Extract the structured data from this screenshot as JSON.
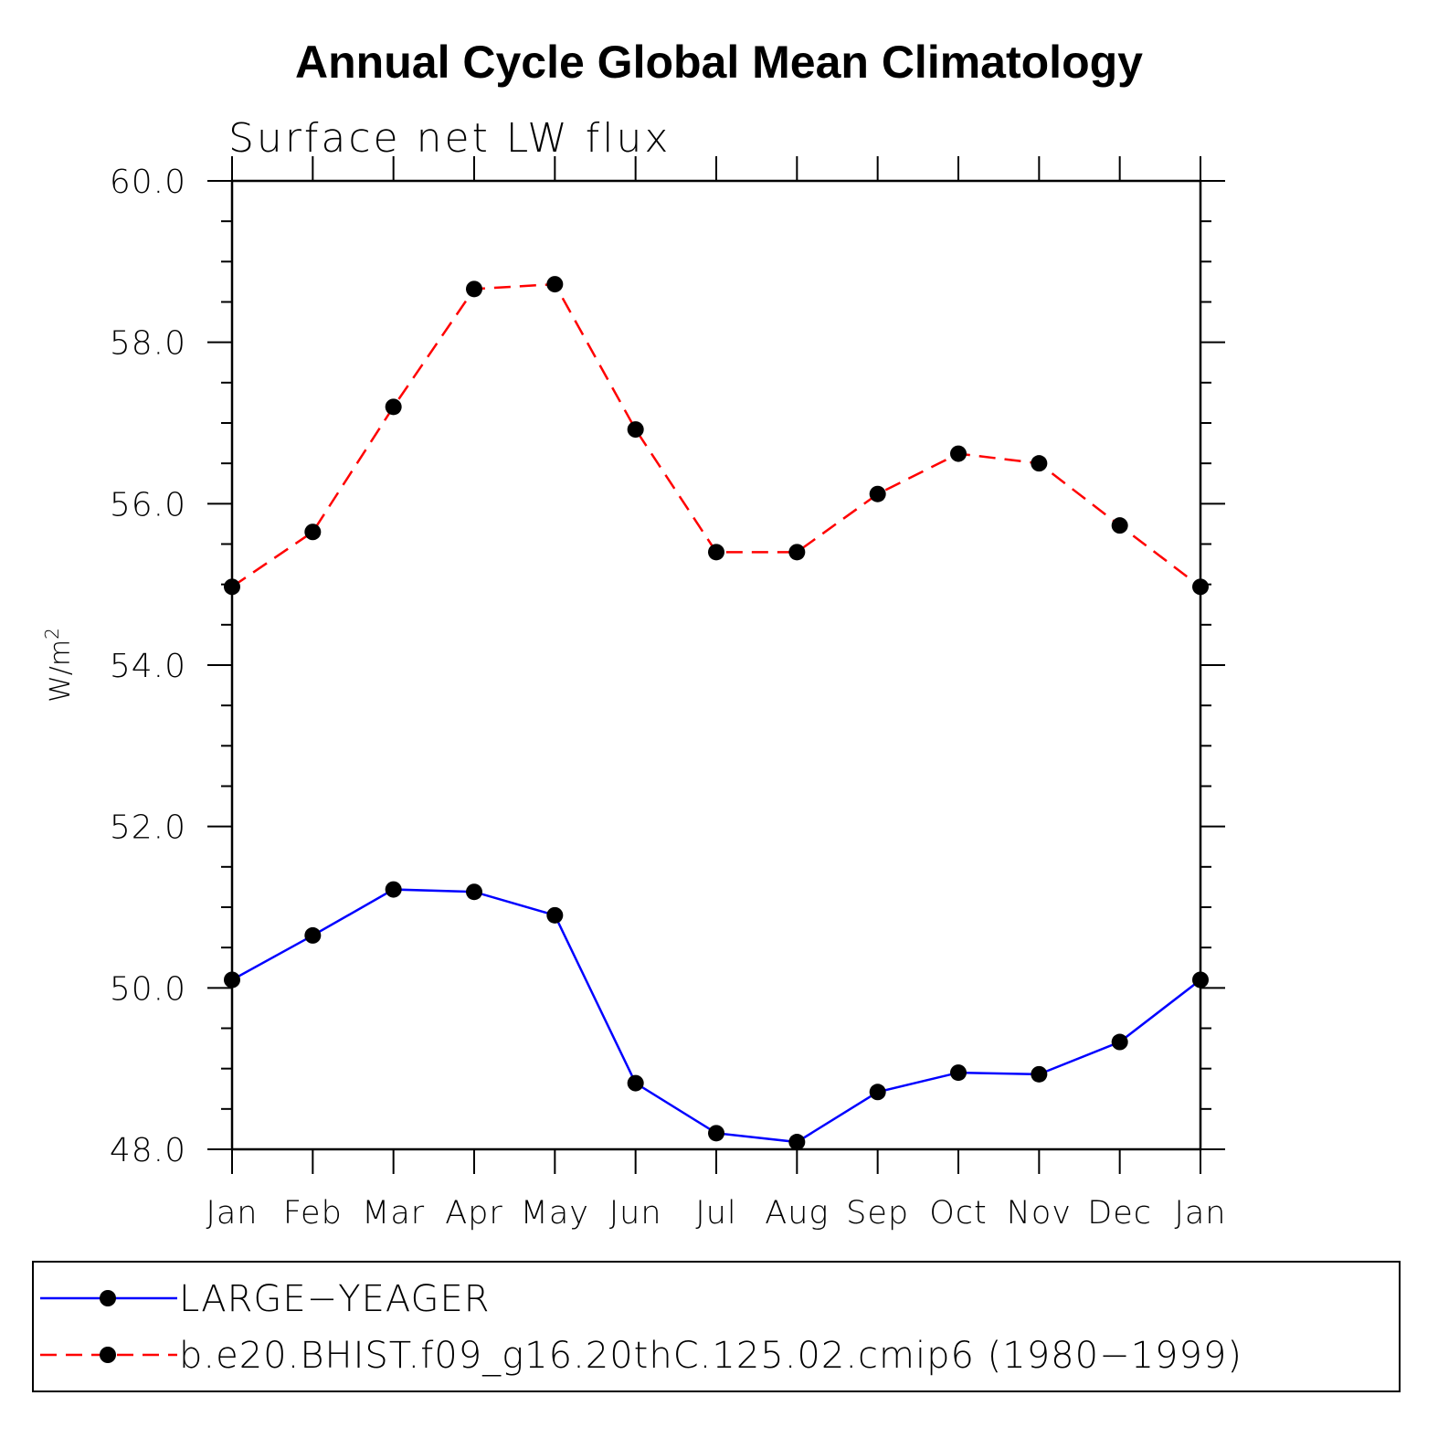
{
  "chart_data": {
    "type": "line",
    "title": "Annual Cycle Global Mean Climatology",
    "subtitle": "Surface net LW flux",
    "ylabel_base": "W/m",
    "ylabel_sup": "2",
    "xlabel": "",
    "categories": [
      "Jan",
      "Feb",
      "Mar",
      "Apr",
      "May",
      "Jun",
      "Jul",
      "Aug",
      "Sep",
      "Oct",
      "Nov",
      "Dec",
      "Jan"
    ],
    "ylim": [
      48.0,
      60.0
    ],
    "yticks": [
      "48.0",
      "50.0",
      "52.0",
      "54.0",
      "56.0",
      "58.0",
      "60.0"
    ],
    "grid": false,
    "legend_position": "bottom",
    "series": [
      {
        "name": "LARGE−YEAGER",
        "color": "#0000ff",
        "dash": "solid",
        "values": [
          50.1,
          50.65,
          51.22,
          51.19,
          50.9,
          48.82,
          48.2,
          48.09,
          48.71,
          48.95,
          48.93,
          49.33,
          50.1
        ]
      },
      {
        "name": "b.e20.BHIST.f09_g16.20thC.125.02.cmip6 (1980−1999)",
        "color": "#ff0000",
        "dash": "dashed",
        "values": [
          54.97,
          55.65,
          57.2,
          58.66,
          58.72,
          56.92,
          55.4,
          55.4,
          56.12,
          56.62,
          56.5,
          55.73,
          54.97
        ]
      }
    ]
  }
}
